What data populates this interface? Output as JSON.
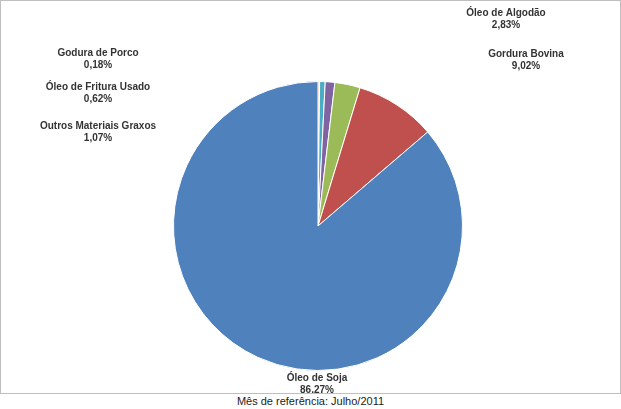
{
  "chart_data": {
    "type": "pie",
    "annotations": [
      "Mês de referência: Julho/2011"
    ],
    "categories": [
      "Godura de Porco",
      "Óleo de Fritura Usado",
      "Outros Materiais Graxos",
      "Óleo de Algodão",
      "Gordura Bovina",
      "Óleo de Soja"
    ],
    "values": [
      0.18,
      0.62,
      1.07,
      2.83,
      9.02,
      86.27
    ],
    "value_labels": [
      "0,18%",
      "0,62%",
      "1,07%",
      "2,83%",
      "9,02%",
      "86,27%"
    ],
    "colors": [
      "#f79646",
      "#4bacc6",
      "#8064a2",
      "#9bbb59",
      "#c0504d",
      "#4f81bd"
    ],
    "data_labels": true
  }
}
